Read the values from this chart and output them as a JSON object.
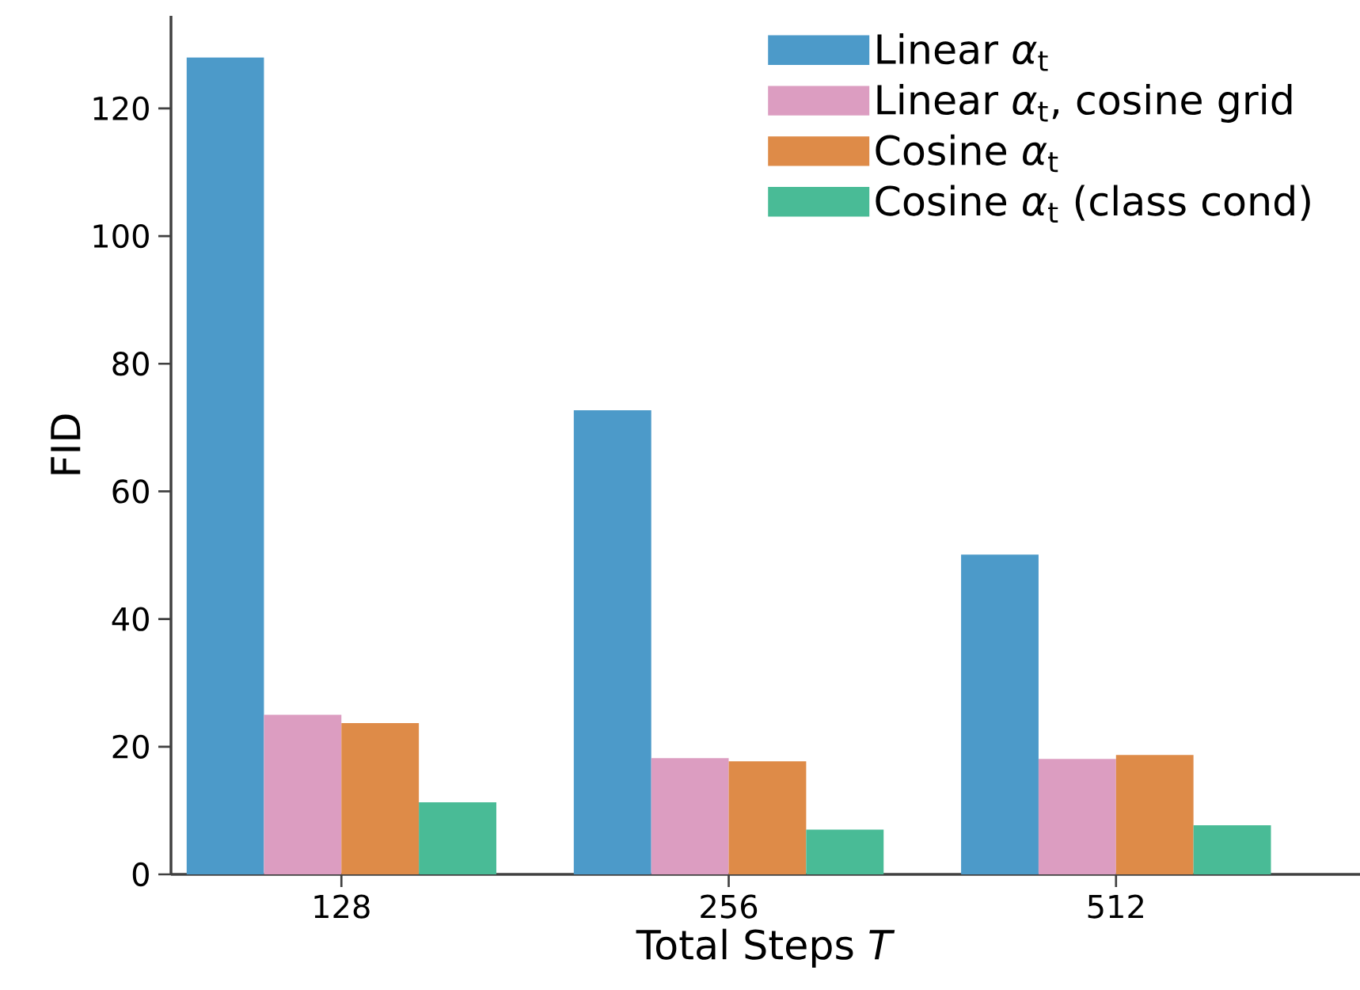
{
  "chart_data": {
    "type": "bar",
    "xlabel": "Total Steps *T*",
    "ylabel": "FID",
    "categories": [
      "128",
      "256",
      "512"
    ],
    "series": [
      {
        "name": "Linear *α*$_{t}$",
        "color": "#4c9ac9",
        "values": [
          128,
          72.7,
          50.1
        ]
      },
      {
        "name": "Linear *α*$_{t}$, cosine grid",
        "color": "#dc9dc1",
        "values": [
          25.0,
          18.2,
          18.1
        ]
      },
      {
        "name": "Cosine *α*$_{t}$",
        "color": "#de8b48",
        "values": [
          23.7,
          17.7,
          18.7
        ]
      },
      {
        "name": "Cosine *α*$_{t}$ (class cond)",
        "color": "#49bb96",
        "values": [
          11.3,
          7.0,
          7.7
        ]
      }
    ],
    "ylim": [
      0,
      134.5
    ],
    "yticks": [
      0,
      20,
      40,
      60,
      80,
      100,
      120
    ],
    "grid": false,
    "legend": "top right"
  }
}
